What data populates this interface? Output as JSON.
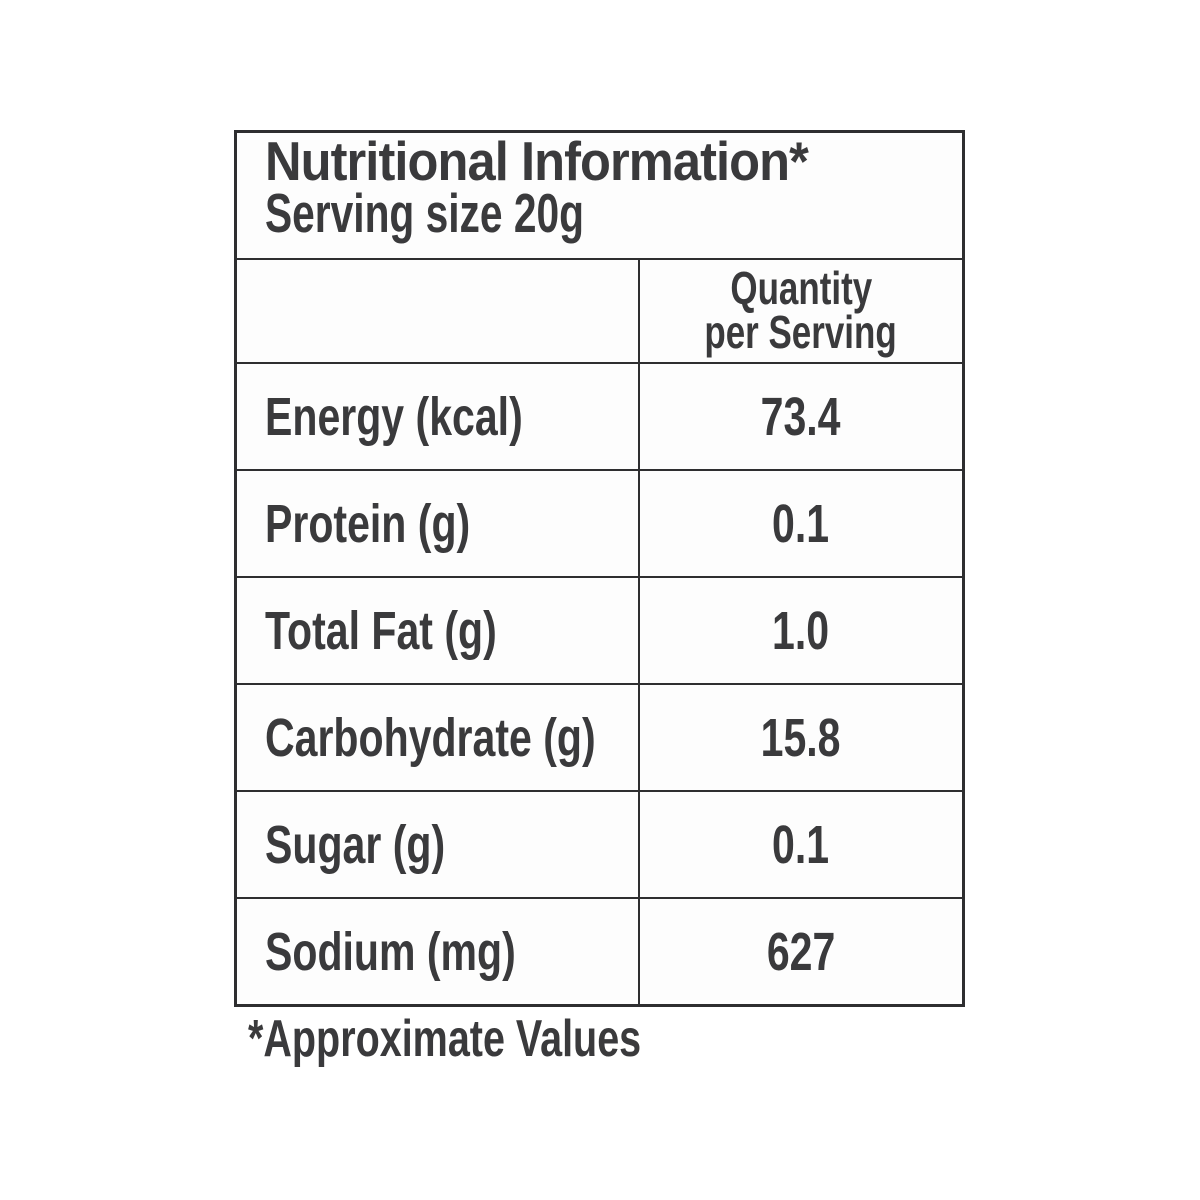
{
  "label": {
    "title": "Nutritional Information*",
    "serving": "Serving size 20g",
    "column_header_line1": "Quantity",
    "column_header_line2": "per Serving",
    "rows": [
      {
        "label": "Energy (kcal)",
        "value": "73.4"
      },
      {
        "label": "Protein (g)",
        "value": "0.1"
      },
      {
        "label": "Total Fat (g)",
        "value": "1.0"
      },
      {
        "label": "Carbohydrate (g)",
        "value": "15.8"
      },
      {
        "label": "Sugar (g)",
        "value": "0.1"
      },
      {
        "label": "Sodium (mg)",
        "value": "627"
      }
    ],
    "footnote": "*Approximate Values"
  },
  "colors": {
    "text": "#3a3a3c",
    "border": "#2e2e30",
    "table_background": "#fdfdfd",
    "page_background": "#ffffff"
  }
}
